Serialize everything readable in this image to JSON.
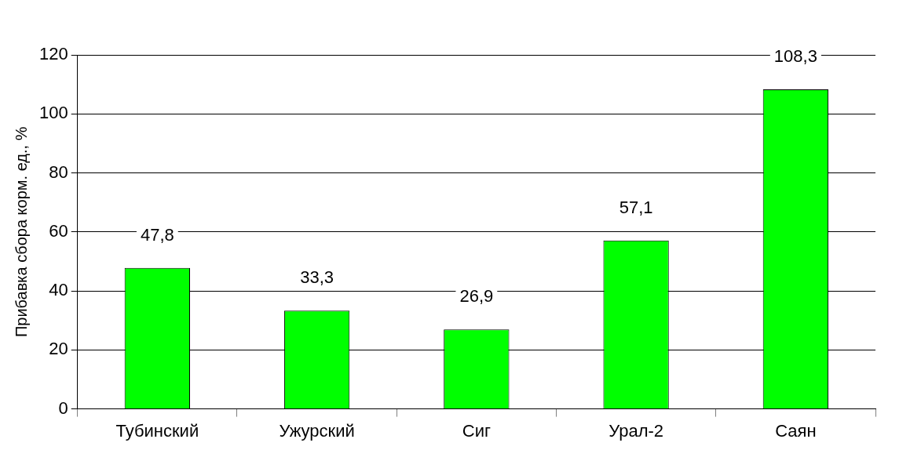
{
  "chart_data": {
    "type": "bar",
    "ylabel": "Прибавка сбора корм. ед., %",
    "categories": [
      "Тубинский",
      "Ужурский",
      "Сиг",
      "Урал-2",
      "Саян"
    ],
    "values": [
      47.8,
      33.3,
      26.9,
      57.1,
      108.3
    ],
    "value_labels": [
      "47,8",
      "33,3",
      "26,9",
      "57,1",
      "108,3"
    ],
    "color": "#00ff00",
    "ylim": [
      0,
      120
    ],
    "yticks": [
      0,
      20,
      40,
      60,
      80,
      100,
      120
    ],
    "grid": "y",
    "legend": false
  }
}
